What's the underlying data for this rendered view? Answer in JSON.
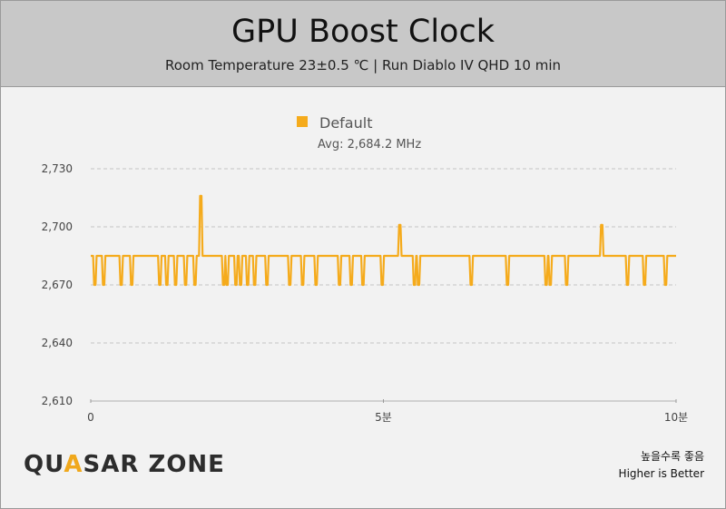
{
  "header": {
    "title": "GPU Boost Clock",
    "subtitle": "Room Temperature 23±0.5 ℃  |  Run Diablo IV QHD 10 min"
  },
  "footer": {
    "logo_prefix": "QU",
    "logo_accent": "A",
    "logo_suffix": "SAR ZONE",
    "note_ko": "높을수록 좋음",
    "note_en": "Higher is Better"
  },
  "colors": {
    "series": "#f5ab1c",
    "grid": "#c4c4c4",
    "header_bg": "#c8c8c8",
    "plot_bg": "#f2f2f2"
  },
  "chart_data": {
    "type": "line",
    "title": "GPU Boost Clock",
    "ylim": [
      2610,
      2730
    ],
    "yticks": [
      "2,730",
      "2,700",
      "2,670",
      "2,640",
      "2,610"
    ],
    "ytick_values": [
      2730,
      2700,
      2670,
      2640,
      2610
    ],
    "xlim": [
      0,
      10
    ],
    "xticks": [
      "0",
      "5분",
      "10분"
    ],
    "xtick_values": [
      0,
      5,
      10
    ],
    "grid": true,
    "legend_position": "top-center",
    "series": [
      {
        "name": "Default",
        "avg_label": "Avg: 2,684.2 MHz",
        "baseline": 2685,
        "spikes": [
          {
            "x": 0.07,
            "y": 2670
          },
          {
            "x": 0.22,
            "y": 2670
          },
          {
            "x": 0.52,
            "y": 2670
          },
          {
            "x": 0.7,
            "y": 2670
          },
          {
            "x": 1.18,
            "y": 2670
          },
          {
            "x": 1.3,
            "y": 2670
          },
          {
            "x": 1.45,
            "y": 2670
          },
          {
            "x": 1.62,
            "y": 2670
          },
          {
            "x": 1.78,
            "y": 2670
          },
          {
            "x": 1.88,
            "y": 2716
          },
          {
            "x": 2.27,
            "y": 2670
          },
          {
            "x": 2.33,
            "y": 2670
          },
          {
            "x": 2.48,
            "y": 2670
          },
          {
            "x": 2.56,
            "y": 2670
          },
          {
            "x": 2.68,
            "y": 2670
          },
          {
            "x": 2.8,
            "y": 2670
          },
          {
            "x": 3.01,
            "y": 2670
          },
          {
            "x": 3.4,
            "y": 2670
          },
          {
            "x": 3.62,
            "y": 2670
          },
          {
            "x": 3.85,
            "y": 2670
          },
          {
            "x": 4.25,
            "y": 2670
          },
          {
            "x": 4.45,
            "y": 2670
          },
          {
            "x": 4.65,
            "y": 2670
          },
          {
            "x": 4.98,
            "y": 2670
          },
          {
            "x": 5.28,
            "y": 2701
          },
          {
            "x": 5.53,
            "y": 2670
          },
          {
            "x": 5.6,
            "y": 2670
          },
          {
            "x": 6.5,
            "y": 2670
          },
          {
            "x": 7.12,
            "y": 2670
          },
          {
            "x": 7.78,
            "y": 2670
          },
          {
            "x": 7.85,
            "y": 2670
          },
          {
            "x": 8.13,
            "y": 2670
          },
          {
            "x": 8.73,
            "y": 2701
          },
          {
            "x": 9.17,
            "y": 2670
          },
          {
            "x": 9.46,
            "y": 2670
          },
          {
            "x": 9.82,
            "y": 2670
          }
        ]
      }
    ]
  }
}
